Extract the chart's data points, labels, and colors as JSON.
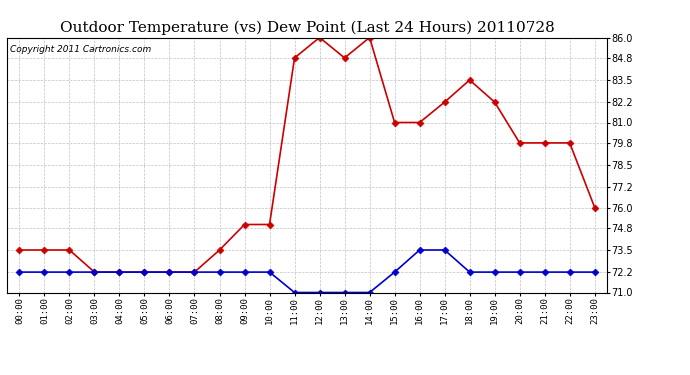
{
  "title": "Outdoor Temperature (vs) Dew Point (Last 24 Hours) 20110728",
  "copyright": "Copyright 2011 Cartronics.com",
  "hours": [
    "00:00",
    "01:00",
    "02:00",
    "03:00",
    "04:00",
    "05:00",
    "06:00",
    "07:00",
    "08:00",
    "09:00",
    "10:00",
    "11:00",
    "12:00",
    "13:00",
    "14:00",
    "15:00",
    "16:00",
    "17:00",
    "18:00",
    "19:00",
    "20:00",
    "21:00",
    "22:00",
    "23:00"
  ],
  "temp": [
    73.5,
    73.5,
    73.5,
    72.2,
    72.2,
    72.2,
    72.2,
    72.2,
    73.5,
    75.0,
    75.0,
    84.8,
    86.0,
    84.8,
    86.0,
    81.0,
    81.0,
    82.2,
    83.5,
    82.2,
    79.8,
    79.8,
    79.8,
    76.0
  ],
  "dew": [
    72.2,
    72.2,
    72.2,
    72.2,
    72.2,
    72.2,
    72.2,
    72.2,
    72.2,
    72.2,
    72.2,
    71.0,
    71.0,
    71.0,
    71.0,
    72.2,
    73.5,
    73.5,
    72.2,
    72.2,
    72.2,
    72.2,
    72.2,
    72.2
  ],
  "temp_color": "#cc0000",
  "dew_color": "#0000cc",
  "ylim": [
    71.0,
    86.0
  ],
  "yticks": [
    71.0,
    72.2,
    73.5,
    74.8,
    76.0,
    77.2,
    78.5,
    79.8,
    81.0,
    82.2,
    83.5,
    84.8,
    86.0
  ],
  "bg_color": "#ffffff",
  "grid_color": "#bbbbbb",
  "title_fontsize": 11,
  "copyright_fontsize": 6.5,
  "markersize": 3.5,
  "linewidth": 1.2
}
